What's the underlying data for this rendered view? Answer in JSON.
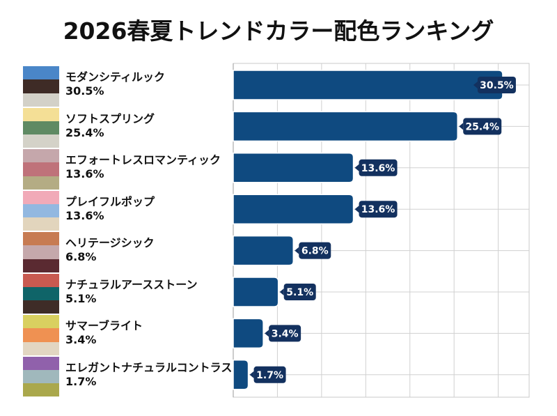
{
  "title": "2026春夏トレンドカラー配色ランキング",
  "bar_color": "#0f4a80",
  "label_color": "#13315f",
  "chart_data": {
    "type": "bar",
    "orientation": "horizontal",
    "title": "2026春夏トレンドカラー配色ランキング",
    "categories": [
      "モダンシティルック",
      "ソフトスプリング",
      "エフォートレスロマンティック",
      "プレイフルポップ",
      "ヘリテージシック",
      "ナチュラルアースストーン",
      "サマーブライト",
      "エレガントナチュラルコントラスト"
    ],
    "values": [
      30.5,
      25.4,
      13.6,
      13.6,
      6.8,
      5.1,
      3.4,
      1.7
    ],
    "data_labels": [
      "30.5%",
      "25.4%",
      "13.6%",
      "13.6%",
      "6.8%",
      "5.1%",
      "3.4%",
      "1.7%"
    ],
    "unit": "%",
    "xlim": [
      0,
      33.5
    ],
    "grid": true,
    "grid_step": 5,
    "axis_tick_labels": false
  },
  "palettes": [
    [
      "#4a86c8",
      "#3e2b26",
      "#d3d1c8"
    ],
    [
      "#f4df96",
      "#5f8a63",
      "#d4d2c8"
    ],
    [
      "#c5a7ab",
      "#bf727a",
      "#b4ac84"
    ],
    [
      "#f1aab8",
      "#93b8e0",
      "#e2d5bd"
    ],
    [
      "#c77b52",
      "#c5a8ab",
      "#5a2a31"
    ],
    [
      "#c85a50",
      "#0f6468",
      "#3e2c27"
    ],
    [
      "#d9d060",
      "#ef9152",
      "#e2d6c2"
    ],
    [
      "#9061ab",
      "#a0b8bc",
      "#aaa84c"
    ]
  ]
}
